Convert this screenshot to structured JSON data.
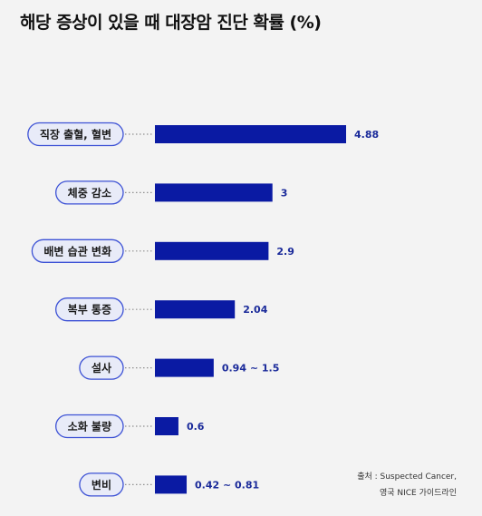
{
  "title": "해당 증상이 있을 때 대장암 진단 확률 (%)",
  "source": {
    "line1": "출처 : Suspected Cancer,",
    "line2": "영국 NICE 가이드라인"
  },
  "colors": {
    "bar": "#0a1aa3",
    "pill_border": "#3d52d5",
    "pill_fill": "#e8ebf8",
    "dotted": "#8f8f8f",
    "value_text": "#1a2a9a",
    "background": "#f3f3f3"
  },
  "chart_data": {
    "type": "bar",
    "orientation": "horizontal",
    "categories": [
      "직장 출혈, 혈변",
      "체중 감소",
      "배변 습관 변화",
      "복부 통증",
      "설사",
      "소화 불량",
      "변비"
    ],
    "values": [
      4.88,
      3,
      2.9,
      2.04,
      1.5,
      0.6,
      0.81
    ],
    "value_labels": [
      "4.88",
      "3",
      "2.9",
      "2.04",
      "0.94 ~ 1.5",
      "0.6",
      "0.42 ~ 0.81"
    ],
    "title": "해당 증상이 있을 때 대장암 진단 확률 (%)",
    "xlim": [
      0,
      4.88
    ],
    "grid": false,
    "legend": "none"
  }
}
